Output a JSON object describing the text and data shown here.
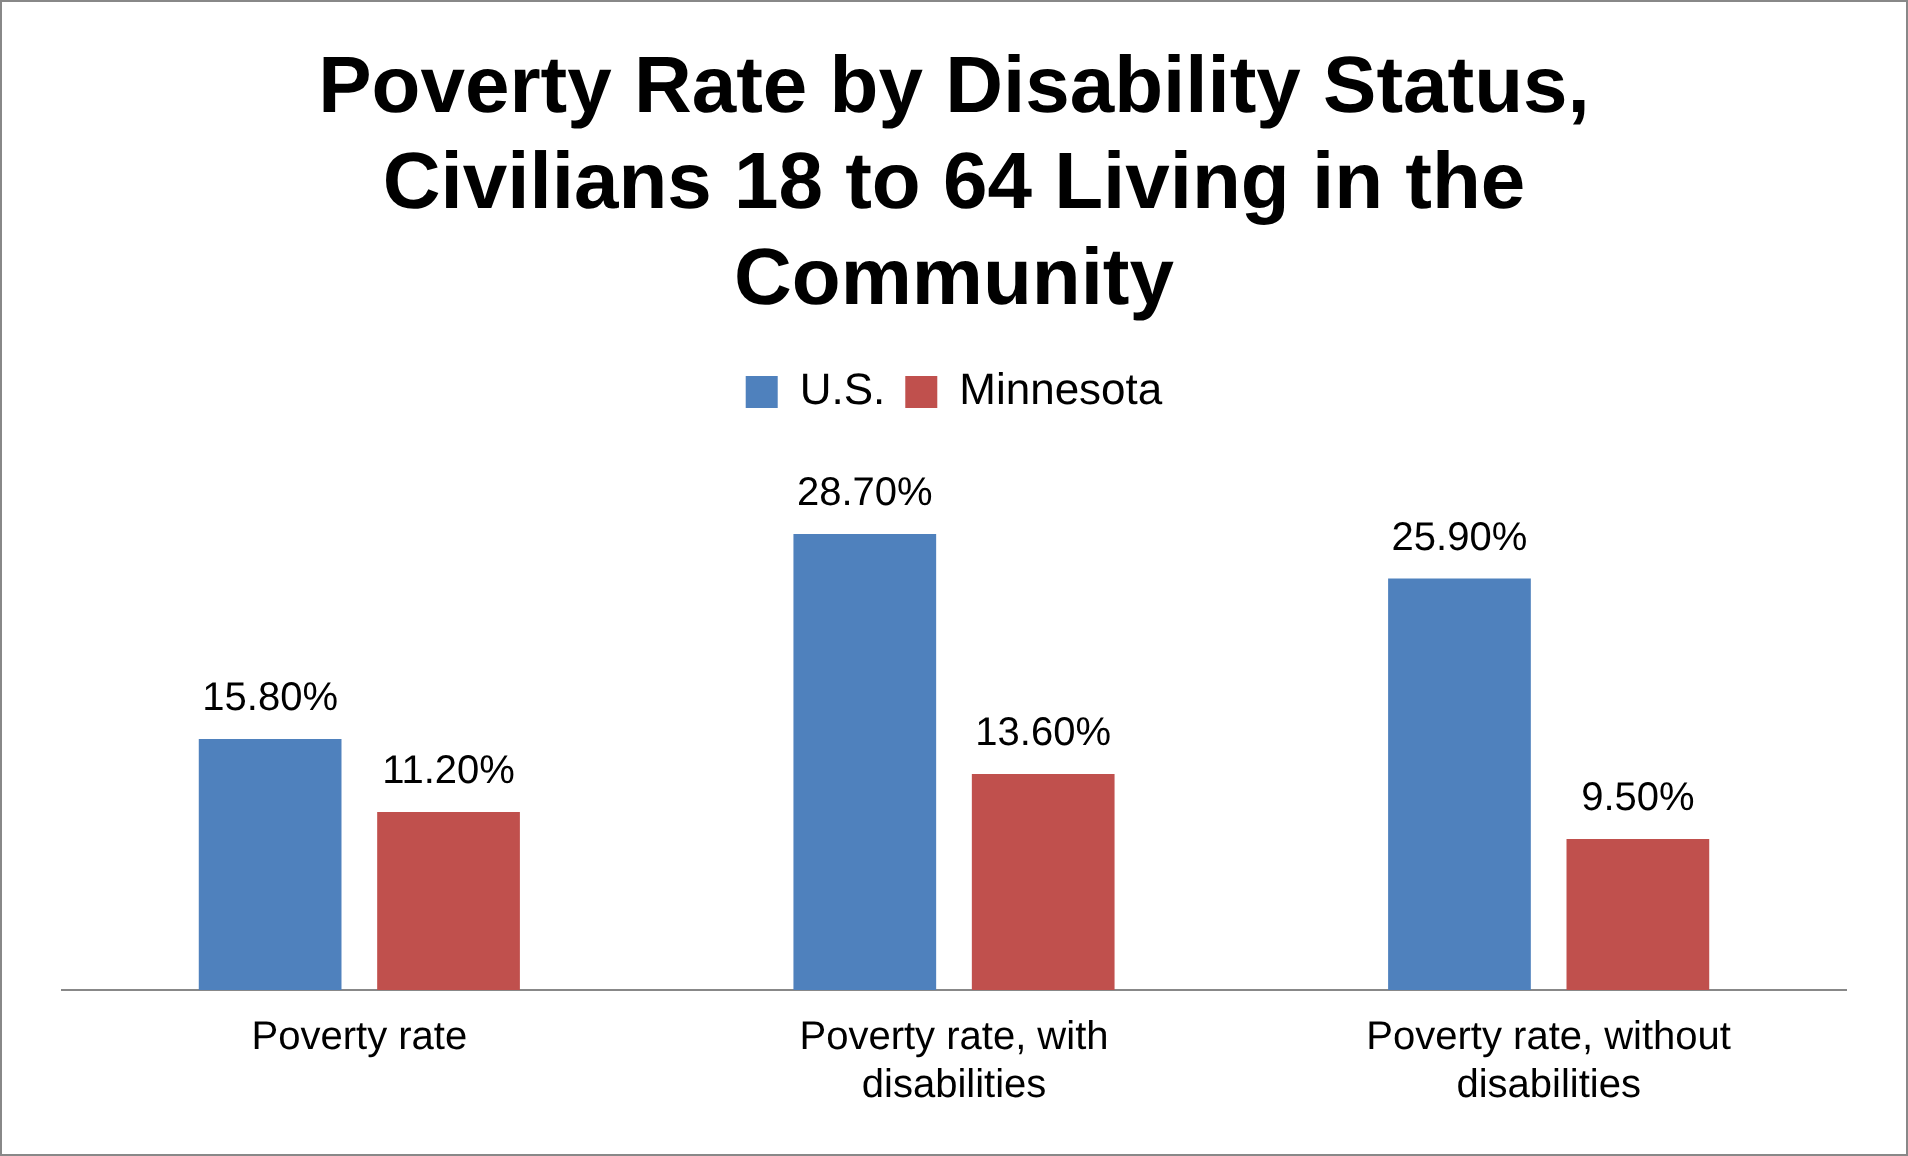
{
  "chart_data": {
    "type": "bar",
    "title": "Poverty Rate by Disability Status, Civilians 18 to 64 Living in the Community",
    "categories": [
      "Poverty rate",
      "Poverty rate, with disabilities",
      "Poverty rate, without disabilities"
    ],
    "series": [
      {
        "name": "U.S.",
        "color": "#4f81bd",
        "values": [
          15.8,
          28.7,
          25.9
        ],
        "value_labels": [
          "15.80%",
          "28.70%",
          "25.90%"
        ]
      },
      {
        "name": "Minnesota",
        "color": "#c0504d",
        "values": [
          11.2,
          13.6,
          9.5
        ],
        "value_labels": [
          "11.20%",
          "13.60%",
          "9.50%"
        ]
      }
    ],
    "legend": "top",
    "grid": false,
    "tick_labels": "x"
  }
}
